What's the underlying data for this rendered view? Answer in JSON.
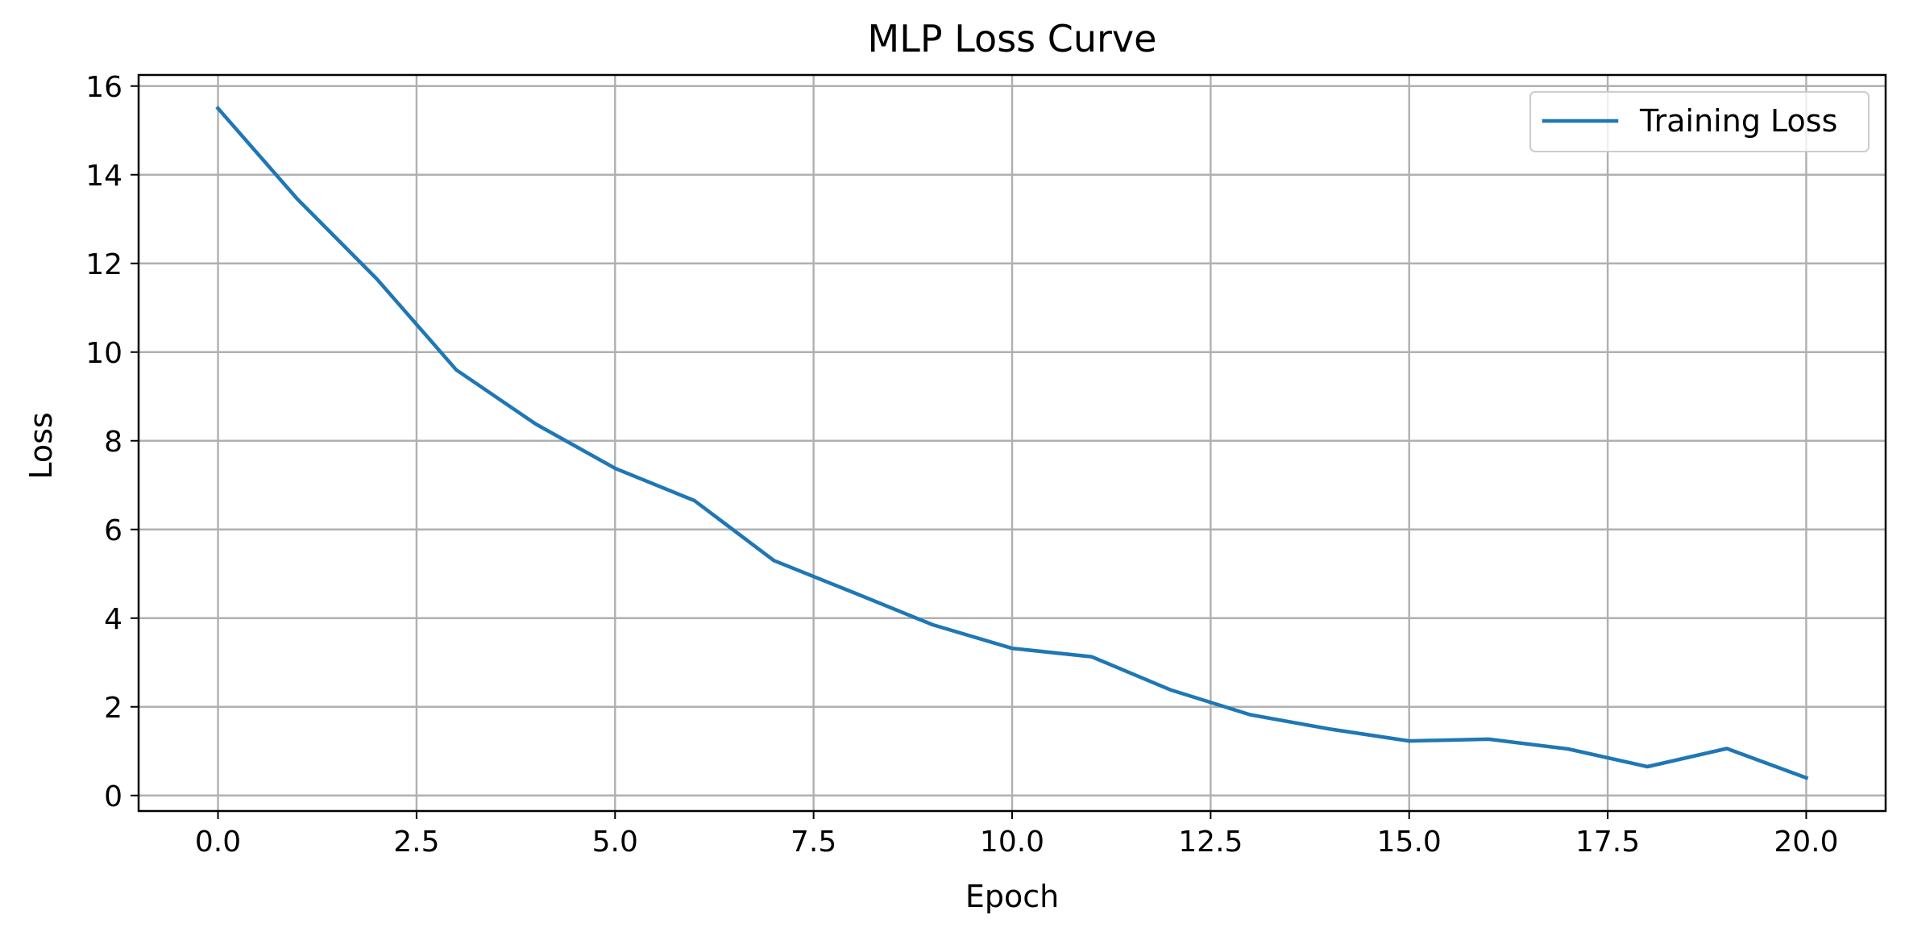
{
  "chart_data": {
    "type": "line",
    "title": "MLP Loss Curve",
    "xlabel": "Epoch",
    "ylabel": "Loss",
    "xlim": [
      -1,
      21
    ],
    "ylim": [
      -0.35,
      16.25
    ],
    "xticks": [
      0.0,
      2.5,
      5.0,
      7.5,
      10.0,
      12.5,
      15.0,
      17.5,
      20.0
    ],
    "xtick_labels": [
      "0.0",
      "2.5",
      "5.0",
      "7.5",
      "10.0",
      "12.5",
      "15.0",
      "17.5",
      "20.0"
    ],
    "yticks": [
      0,
      2,
      4,
      6,
      8,
      10,
      12,
      14,
      16
    ],
    "ytick_labels": [
      "0",
      "2",
      "4",
      "6",
      "8",
      "10",
      "12",
      "14",
      "16"
    ],
    "grid": true,
    "legend_position": "top-right",
    "series": [
      {
        "name": "Training Loss",
        "color": "#1f77b4",
        "x": [
          0,
          1,
          2,
          3,
          4,
          5,
          6,
          7,
          8,
          9,
          10,
          11,
          12,
          13,
          14,
          15,
          16,
          17,
          18,
          19,
          20
        ],
        "y": [
          15.5,
          13.45,
          11.65,
          9.6,
          8.38,
          7.38,
          6.65,
          5.3,
          4.58,
          3.85,
          3.32,
          3.13,
          2.38,
          1.82,
          1.5,
          1.23,
          1.27,
          1.05,
          0.65,
          1.06,
          0.4
        ]
      }
    ]
  }
}
